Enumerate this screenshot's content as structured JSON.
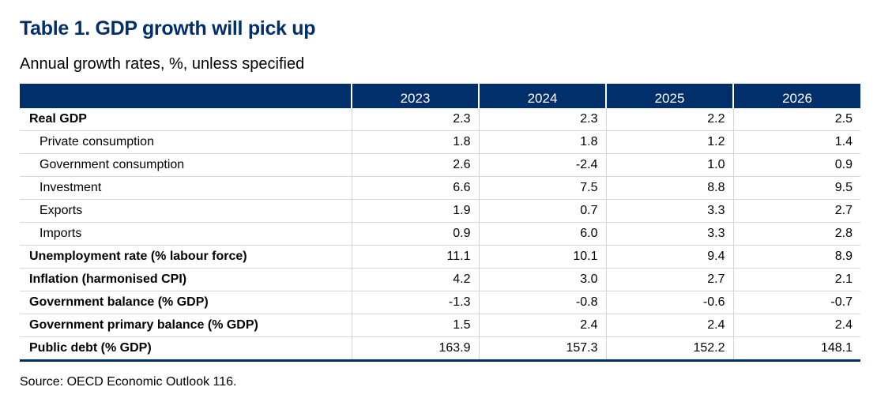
{
  "title": "Table 1. GDP growth will pick up",
  "subtitle": "Annual growth rates, %, unless specified",
  "source": "Source: OECD Economic Outlook 116.",
  "colors": {
    "header_bg": "#002f6c",
    "title": "#002f6c"
  },
  "table": {
    "years": [
      "2023",
      "2024",
      "2025",
      "2026"
    ],
    "rows": [
      {
        "label": "Real GDP",
        "bold": true,
        "indent": false,
        "values": [
          "2.3",
          "2.3",
          "2.2",
          "2.5"
        ]
      },
      {
        "label": "Private consumption",
        "bold": false,
        "indent": true,
        "values": [
          "1.8",
          "1.8",
          "1.2",
          "1.4"
        ]
      },
      {
        "label": "Government consumption",
        "bold": false,
        "indent": true,
        "values": [
          "2.6",
          "-2.4",
          "1.0",
          "0.9"
        ]
      },
      {
        "label": "Investment",
        "bold": false,
        "indent": true,
        "values": [
          "6.6",
          "7.5",
          "8.8",
          "9.5"
        ]
      },
      {
        "label": "Exports",
        "bold": false,
        "indent": true,
        "values": [
          "1.9",
          "0.7",
          "3.3",
          "2.7"
        ]
      },
      {
        "label": "Imports",
        "bold": false,
        "indent": true,
        "values": [
          "0.9",
          "6.0",
          "3.3",
          "2.8"
        ]
      },
      {
        "label": "Unemployment rate (% labour force)",
        "bold": true,
        "indent": false,
        "values": [
          "11.1",
          "10.1",
          "9.4",
          "8.9"
        ]
      },
      {
        "label": "Inflation (harmonised CPI)",
        "bold": true,
        "indent": false,
        "values": [
          "4.2",
          "3.0",
          "2.7",
          "2.1"
        ]
      },
      {
        "label": "Government balance (% GDP)",
        "bold": true,
        "indent": false,
        "values": [
          "-1.3",
          "-0.8",
          "-0.6",
          "-0.7"
        ]
      },
      {
        "label": "Government primary balance (% GDP)",
        "bold": true,
        "indent": false,
        "values": [
          "1.5",
          "2.4",
          "2.4",
          "2.4"
        ]
      },
      {
        "label": "Public debt (% GDP)",
        "bold": true,
        "indent": false,
        "values": [
          "163.9",
          "157.3",
          "152.2",
          "148.1"
        ]
      }
    ]
  }
}
